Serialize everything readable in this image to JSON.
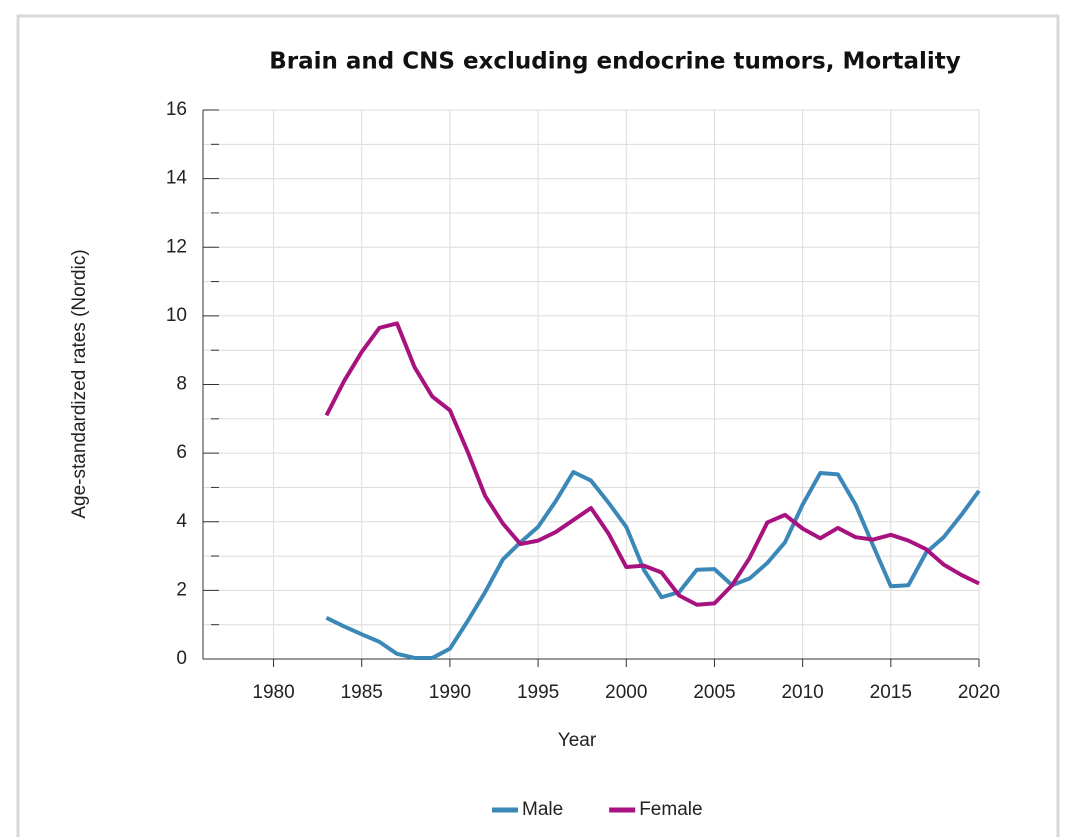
{
  "chart_data": {
    "type": "line",
    "title": "Brain and CNS excluding endocrine tumors, Mortality",
    "x_label": "Year",
    "y_label": "Age-standardized rates (Nordic)",
    "x": [
      1983,
      1984,
      1985,
      1986,
      1987,
      1988,
      1989,
      1990,
      1991,
      1992,
      1993,
      1994,
      1995,
      1996,
      1997,
      1998,
      1999,
      2000,
      2001,
      2002,
      2003,
      2004,
      2005,
      2006,
      2007,
      2008,
      2009,
      2010,
      2011,
      2012,
      2013,
      2014,
      2015,
      2016,
      2017,
      2018,
      2019,
      2020
    ],
    "series": [
      {
        "name": "Male",
        "color": "#3a87b8",
        "values": [
          1.2,
          0.95,
          0.72,
          0.5,
          0.15,
          0.03,
          0.03,
          0.3,
          1.1,
          1.95,
          2.9,
          3.4,
          3.85,
          4.6,
          5.45,
          5.2,
          4.55,
          3.85,
          2.6,
          1.8,
          1.95,
          2.6,
          2.62,
          2.15,
          2.35,
          2.8,
          3.4,
          4.5,
          5.42,
          5.38,
          4.5,
          3.3,
          2.12,
          2.15,
          3.1,
          3.55,
          4.2,
          4.9
        ]
      },
      {
        "name": "Female",
        "color": "#a8127f",
        "values": [
          7.1,
          8.1,
          8.95,
          9.65,
          9.78,
          8.5,
          7.65,
          7.25,
          6.05,
          4.75,
          3.95,
          3.35,
          3.45,
          3.7,
          4.05,
          4.4,
          3.65,
          2.68,
          2.72,
          2.52,
          1.85,
          1.58,
          1.62,
          2.15,
          2.95,
          3.98,
          4.2,
          3.8,
          3.52,
          3.82,
          3.55,
          3.48,
          3.62,
          3.45,
          3.2,
          2.75,
          2.45,
          2.2
        ]
      }
    ],
    "xlim": [
      1976,
      2020
    ],
    "xticks": [
      1980,
      1985,
      1990,
      1995,
      2000,
      2005,
      2010,
      2015,
      2020
    ],
    "ylim": [
      0,
      16
    ],
    "yticks": [
      0,
      2,
      4,
      6,
      8,
      10,
      12,
      14,
      16
    ],
    "yminorticks": [
      1,
      3,
      5,
      7,
      9,
      11,
      13,
      15
    ],
    "grid": true,
    "legend": "bottom"
  }
}
